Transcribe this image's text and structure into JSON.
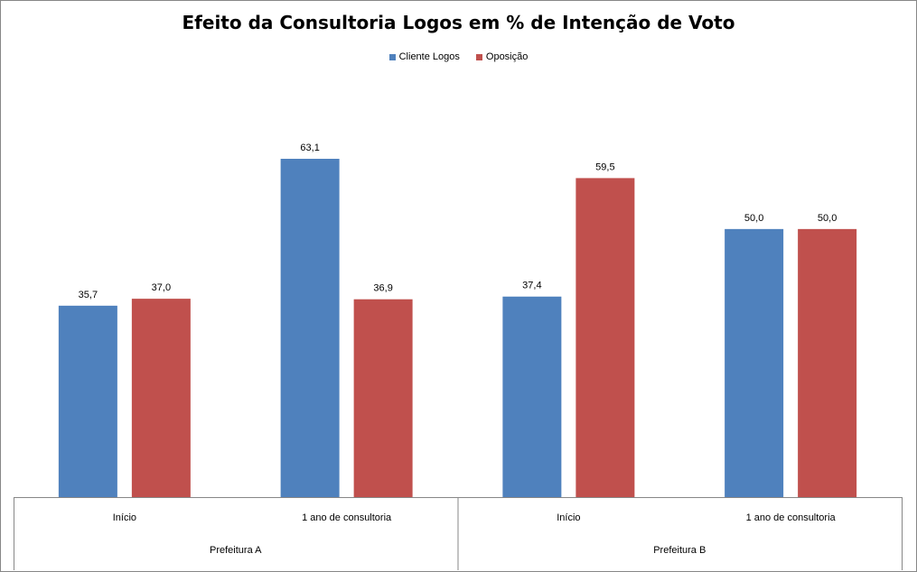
{
  "chart_data": {
    "type": "bar",
    "title": "Efeito da Consultoria Logos em % de Intenção de Voto",
    "groups": [
      {
        "label": "Prefeitura A",
        "categories": [
          "Início",
          "1 ano de consultoria"
        ]
      },
      {
        "label": "Prefeitura B",
        "categories": [
          "Início",
          "1 ano de consultoria"
        ]
      }
    ],
    "categories": [
      "Início",
      "1 ano de consultoria",
      "Início",
      "1 ano de consultoria"
    ],
    "series": [
      {
        "name": "Cliente Logos",
        "color": "#4F81BD",
        "values": [
          35.7,
          63.1,
          37.4,
          50.0
        ],
        "labels": [
          "35,7",
          "63,1",
          "37,4",
          "50,0"
        ]
      },
      {
        "name": "Oposição",
        "color": "#C0504D",
        "values": [
          37.0,
          36.9,
          59.5,
          50.0
        ],
        "labels": [
          "37,0",
          "36,9",
          "59,5",
          "50,0"
        ]
      }
    ],
    "ylim": [
      0,
      70
    ],
    "xlabel": "",
    "ylabel": "",
    "grid": false,
    "legend": "top-center"
  }
}
